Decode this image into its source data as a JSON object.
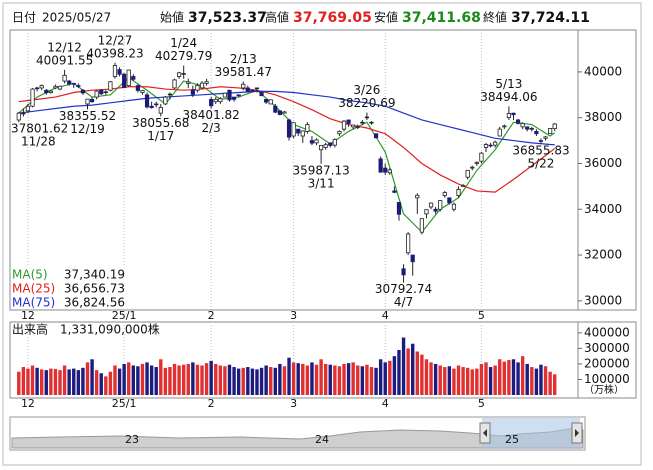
{
  "chart_data": {
    "type": "candlestick",
    "header": {
      "date_label": "日付",
      "date": "2025/05/27",
      "open_label": "始値",
      "open": "37,523.37",
      "high_label": "高値",
      "high": "37,769.05",
      "low_label": "安値",
      "low": "37,411.68",
      "close_label": "終値",
      "close": "37,724.11"
    },
    "categories": [
      null,
      null,
      "12",
      null,
      null,
      null,
      null,
      null,
      null,
      null,
      null,
      null,
      null,
      null,
      null,
      null,
      null,
      null,
      null,
      null,
      null,
      null,
      null,
      "25/1",
      null,
      null,
      null,
      null,
      null,
      null,
      null,
      null,
      null,
      null,
      null,
      null,
      null,
      null,
      null,
      null,
      null,
      null,
      "2",
      null,
      null,
      null,
      null,
      null,
      null,
      null,
      null,
      null,
      null,
      null,
      null,
      null,
      null,
      null,
      null,
      null,
      "3",
      null,
      null,
      null,
      null,
      null,
      null,
      null,
      null,
      null,
      null,
      null,
      null,
      null,
      null,
      null,
      null,
      null,
      null,
      null,
      "4",
      null,
      null,
      null,
      null,
      null,
      null,
      null,
      null,
      null,
      null,
      null,
      null,
      null,
      null,
      null,
      null,
      null,
      null,
      null,
      null,
      "5",
      null,
      null,
      null,
      null,
      null,
      null,
      null,
      null,
      null,
      null,
      null,
      null,
      null,
      null,
      null,
      null
    ],
    "open": [
      37900,
      38200,
      38300,
      38500,
      39300,
      39300,
      39200,
      39100,
      39300,
      39250,
      39600,
      39600,
      39500,
      39400,
      39200,
      38600,
      38800,
      38900,
      39200,
      39100,
      39200,
      39800,
      40100,
      39900,
      39400,
      39800,
      39400,
      39100,
      39000,
      38500,
      38600,
      38200,
      38600,
      39000,
      39300,
      39800,
      39900,
      39500,
      39200,
      39200,
      39300,
      39500,
      38800,
      38700,
      38700,
      38900,
      39200,
      38900,
      39000,
      39300,
      39300,
      39200,
      39300,
      39100,
      38800,
      38600,
      38500,
      38300,
      38200,
      37900,
      37200,
      37500,
      37200,
      37400,
      37000,
      36900,
      36600,
      36700,
      36900,
      36800,
      37300,
      37500,
      37900,
      37600,
      37600,
      37800,
      38000,
      37800,
      37300,
      36200,
      35800,
      35600,
      34800,
      34300,
      31400,
      32100,
      32000,
      34500,
      33000,
      33800,
      34100,
      34000,
      34000,
      34600,
      34500,
      34000,
      34600,
      35000,
      35400,
      35800,
      36000,
      36100,
      36700,
      36800,
      36800,
      37200,
      37600,
      38000,
      38200,
      37900,
      37600,
      37600,
      37500,
      37400,
      37000,
      37100,
      37300,
      37523.37
    ],
    "high": [
      38250,
      38400,
      38600,
      39300,
      39350,
      39450,
      39250,
      39200,
      39450,
      39400,
      40091.55,
      39650,
      39500,
      39500,
      39250,
      38800,
      38900,
      39200,
      39250,
      39200,
      39600,
      40398.23,
      40200,
      39950,
      40100,
      39900,
      39450,
      39200,
      39100,
      38700,
      38700,
      38600,
      38950,
      39100,
      39700,
      40000,
      40279.79,
      39700,
      39400,
      39500,
      39600,
      39700,
      38900,
      38900,
      38900,
      39100,
      39200,
      38900,
      39000,
      39581.47,
      39400,
      39200,
      39300,
      39150,
      38800,
      38800,
      38600,
      38300,
      38300,
      37950,
      37800,
      37500,
      37450,
      37800,
      37200,
      37100,
      36700,
      36900,
      36900,
      37100,
      37450,
      37900,
      37900,
      37700,
      37700,
      37900,
      38220.69,
      37850,
      37300,
      36300,
      36000,
      35800,
      35000,
      34300,
      31600,
      33000,
      32000,
      34700,
      33600,
      34000,
      34300,
      34100,
      34400,
      34800,
      34500,
      34300,
      35000,
      35100,
      35700,
      35900,
      36100,
      36500,
      36900,
      36900,
      37000,
      37600,
      37700,
      38494.06,
      38200,
      37950,
      37800,
      37600,
      37600,
      37500,
      37100,
      37200,
      37550,
      37769.05
    ],
    "low": [
      37801.62,
      38050,
      38200,
      38450,
      39150,
      39200,
      39000,
      39050,
      39250,
      39200,
      39500,
      39400,
      39300,
      39300,
      39000,
      38355.52,
      38650,
      38800,
      39000,
      39000,
      39150,
      39700,
      39800,
      39300,
      39350,
      39600,
      39100,
      39000,
      38400,
      38400,
      38450,
      38055.68,
      38550,
      38800,
      39250,
      39700,
      39700,
      39300,
      38900,
      39100,
      39250,
      39400,
      38401.82,
      38600,
      38600,
      38900,
      38700,
      38700,
      38900,
      39200,
      39100,
      39100,
      39100,
      38950,
      38600,
      38600,
      38200,
      38100,
      38200,
      37000,
      37100,
      37200,
      36900,
      37300,
      36800,
      36800,
      35987.13,
      36600,
      36700,
      36700,
      37200,
      37400,
      37600,
      37500,
      37500,
      37700,
      37900,
      37700,
      37100,
      35600,
      35500,
      35500,
      34700,
      33500,
      30792.74,
      32000,
      31100,
      33800,
      32900,
      33600,
      34000,
      33800,
      33900,
      34500,
      34200,
      33900,
      34500,
      35000,
      35300,
      35700,
      35900,
      36000,
      36500,
      36700,
      36700,
      37200,
      37500,
      37900,
      37900,
      37700,
      37500,
      37400,
      37400,
      37200,
      36855.83,
      37000,
      37300,
      37411.68
    ],
    "close": [
      38200,
      38200,
      38500,
      39250,
      39280,
      39400,
      39090,
      39160,
      39370,
      39372,
      39850,
      39470,
      39460,
      39360,
      39080,
      38810,
      38700,
      39160,
      39040,
      39130,
      39570,
      40280,
      39895,
      39310,
      40080,
      39680,
      39190,
      39190,
      38470,
      38440,
      38570,
      38450,
      38900,
      39030,
      39650,
      39960,
      39930,
      39560,
      39020,
      39410,
      39510,
      39570,
      38520,
      38800,
      38830,
      39070,
      38780,
      38800,
      38960,
      39460,
      39150,
      39170,
      39270,
      38960,
      38680,
      38780,
      38240,
      38140,
      38250,
      37150,
      37780,
      37330,
      37420,
      37700,
      36890,
      37030,
      36790,
      36820,
      36790,
      37050,
      37400,
      37850,
      37750,
      37680,
      37610,
      37780,
      38030,
      37800,
      37120,
      35620,
      35620,
      35720,
      34740,
      33780,
      31136,
      32920,
      31710,
      34610,
      33590,
      33980,
      34270,
      33920,
      34380,
      34730,
      34280,
      34220,
      34870,
      35040,
      35700,
      35840,
      36050,
      36450,
      36830,
      36780,
      36930,
      37500,
      37640,
      38180,
      38130,
      37750,
      37750,
      37500,
      37530,
      37300,
      36990,
      37160,
      37530,
      37724.11
    ],
    "up_color": "#ffffff",
    "down_color": "#1c1c78",
    "ylim": [
      29600,
      41830
    ],
    "yticks": [
      30000,
      32000,
      34000,
      36000,
      38000,
      40000
    ],
    "ma": [
      {
        "name": "MA(5)",
        "color": "#2e9a2e",
        "value_label": "37,340.19",
        "x": [
          0,
          4,
          8,
          12,
          16,
          20,
          24,
          28,
          32,
          36,
          40,
          44,
          48,
          52,
          56,
          60,
          64,
          68,
          72,
          76,
          80,
          84,
          88,
          92,
          96,
          100,
          104,
          108,
          112,
          116,
          117
        ],
        "values": [
          38200,
          38900,
          39300,
          39500,
          38900,
          39000,
          39750,
          39200,
          38600,
          39600,
          39400,
          38800,
          38900,
          39200,
          38500,
          37700,
          37400,
          36850,
          37400,
          37800,
          36500,
          33800,
          33000,
          34000,
          34500,
          35700,
          36600,
          37800,
          37700,
          37200,
          37340.19
        ]
      },
      {
        "name": "MA(25)",
        "color": "#e02020",
        "value_label": "36,656.73",
        "x": [
          0,
          4,
          8,
          12,
          16,
          20,
          24,
          28,
          32,
          36,
          40,
          44,
          48,
          52,
          56,
          60,
          64,
          68,
          72,
          76,
          80,
          84,
          88,
          92,
          96,
          100,
          104,
          108,
          112,
          116,
          117
        ],
        "values": [
          38700,
          38800,
          38900,
          39100,
          39200,
          39250,
          39350,
          39350,
          39250,
          39200,
          39250,
          39350,
          39300,
          39200,
          39000,
          38700,
          38350,
          37950,
          37700,
          37550,
          37300,
          36700,
          36000,
          35500,
          35100,
          34800,
          34750,
          35300,
          35900,
          36500,
          36656.73
        ]
      },
      {
        "name": "MA(75)",
        "color": "#2233cc",
        "value_label": "36,824.56",
        "x": [
          0,
          4,
          8,
          12,
          16,
          20,
          24,
          28,
          32,
          36,
          40,
          44,
          48,
          52,
          56,
          60,
          64,
          68,
          72,
          76,
          80,
          84,
          88,
          92,
          96,
          100,
          104,
          108,
          112,
          116,
          117
        ],
        "values": [
          38200,
          38300,
          38400,
          38500,
          38550,
          38650,
          38750,
          38850,
          38900,
          38950,
          39000,
          39050,
          39100,
          39150,
          39150,
          39100,
          39000,
          38900,
          38750,
          38650,
          38500,
          38200,
          37900,
          37700,
          37500,
          37300,
          37100,
          37000,
          36900,
          36830,
          36824.56
        ]
      }
    ],
    "annotations": [
      {
        "x": 0,
        "date": "11/28",
        "value": 37801.62
      },
      {
        "x": 10,
        "date": "12/12",
        "value": 40091.55
      },
      {
        "x": 15,
        "date": "12/19",
        "value": 38355.52
      },
      {
        "x": 21,
        "date": "12/27",
        "value": 40398.23
      },
      {
        "x": 31,
        "date": "1/17",
        "value": 38055.68
      },
      {
        "x": 36,
        "date": "1/24",
        "value": 40279.79
      },
      {
        "x": 42,
        "date": "2/3",
        "value": 38401.82
      },
      {
        "x": 49,
        "date": "2/13",
        "value": 39581.47
      },
      {
        "x": 66,
        "date": "3/11",
        "value": 35987.13
      },
      {
        "x": 76,
        "date": "3/26",
        "value": 38220.69
      },
      {
        "x": 84,
        "date": "4/7",
        "value": 30792.74
      },
      {
        "x": 107,
        "date": "5/13",
        "value": 38494.06
      },
      {
        "x": 114,
        "date": "5/22",
        "value": 36855.83
      }
    ],
    "volume": {
      "title": "出来高",
      "label": "1,331,090,000株",
      "unit": "（万株）",
      "up_color": "#e03030",
      "down_color": "#1c1c80",
      "ylim": [
        0,
        470000
      ],
      "yticks": [
        100000,
        200000,
        300000,
        400000
      ],
      "values": [
        150000,
        180000,
        170000,
        190000,
        175000,
        165000,
        160000,
        170000,
        168000,
        160000,
        190000,
        165000,
        170000,
        160000,
        175000,
        210000,
        230000,
        160000,
        140000,
        120000,
        150000,
        190000,
        170000,
        200000,
        210000,
        190000,
        185000,
        200000,
        210000,
        190000,
        180000,
        230000,
        175000,
        180000,
        200000,
        190000,
        195000,
        200000,
        210000,
        195000,
        190000,
        205000,
        220000,
        200000,
        190000,
        185000,
        195000,
        180000,
        170000,
        175000,
        180000,
        170000,
        165000,
        175000,
        190000,
        180000,
        175000,
        200000,
        185000,
        240000,
        210000,
        205000,
        200000,
        190000,
        210000,
        195000,
        230000,
        200000,
        195000,
        190000,
        185000,
        200000,
        205000,
        210000,
        190000,
        185000,
        195000,
        180000,
        175000,
        230000,
        210000,
        220000,
        250000,
        290000,
        370000,
        300000,
        330000,
        280000,
        260000,
        230000,
        210000,
        200000,
        190000,
        180000,
        185000,
        170000,
        190000,
        180000,
        175000,
        165000,
        170000,
        200000,
        210000,
        180000,
        190000,
        230000,
        215000,
        225000,
        230000,
        210000,
        250000,
        200000,
        180000,
        170000,
        195000,
        185000,
        150000,
        133109
      ]
    },
    "navigator_labels": [
      "23",
      "24",
      "25"
    ]
  }
}
